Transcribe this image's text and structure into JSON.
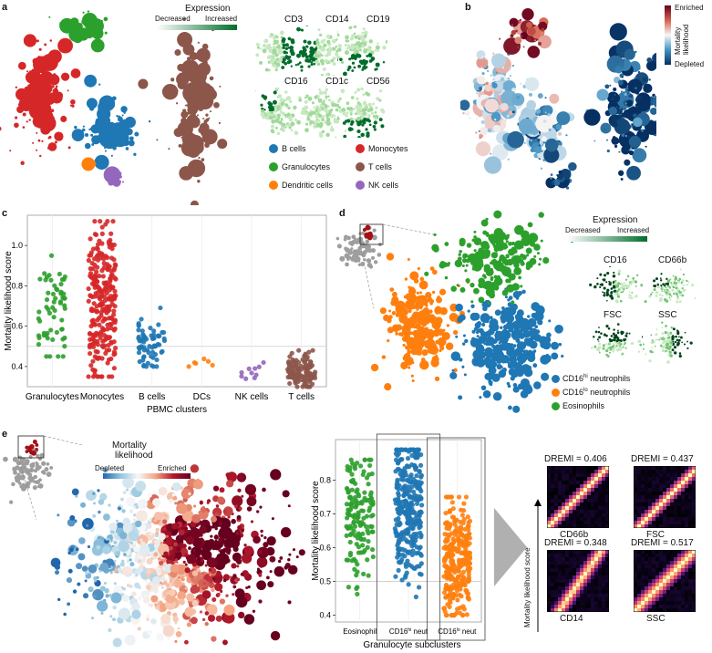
{
  "panels": {
    "a": {
      "letter": "a",
      "expression_title": "Expression",
      "decreased": "Decreased",
      "increased": "Increased",
      "markers": [
        "CD3",
        "CD14",
        "CD19",
        "CD16",
        "CD1c",
        "CD56"
      ],
      "legend": [
        {
          "label": "B cells",
          "color": "#1f77b4"
        },
        {
          "label": "Monocytes",
          "color": "#d62728"
        },
        {
          "label": "Granulocytes",
          "color": "#2ca02c"
        },
        {
          "label": "T cells",
          "color": "#8c564b"
        },
        {
          "label": "Dendritic cells",
          "color": "#ff7f0e"
        },
        {
          "label": "NK cells",
          "color": "#9467bd"
        }
      ]
    },
    "b": {
      "letter": "b",
      "enriched": "Enriched",
      "depleted": "Depleted",
      "scale_title": "Mortality likelihood"
    },
    "c": {
      "letter": "c",
      "ylabel": "Mortality likelihood score",
      "xlabel": "PBMC clusters"
    },
    "d": {
      "letter": "d",
      "expression_title": "Expression",
      "decreased": "Decreased",
      "increased": "Increased",
      "markers": [
        "CD16",
        "CD66b",
        "FSC",
        "SSC"
      ],
      "legend": [
        {
          "label": "CD16hi neutrophils",
          "main": "CD16",
          "sup": "hi",
          "rest": " neutrophils",
          "color": "#1f77b4"
        },
        {
          "label": "CD16lo neutrophils",
          "main": "CD16",
          "sup": "lo",
          "rest": " neutrophils",
          "color": "#ff7f0e"
        },
        {
          "label": "Eosinophils",
          "main": "Eosinophils",
          "sup": "",
          "rest": "",
          "color": "#2ca02c"
        }
      ]
    },
    "e": {
      "letter": "e",
      "scale_title_1": "Mortality",
      "scale_title_2": "likelihood",
      "depleted": "Depleted",
      "enriched": "Enriched",
      "ylabel": "Mortality likelihood score",
      "xlabel": "Granulocyte subclusters",
      "heat_ylabel": "Mortality likelihood score",
      "dremi": [
        {
          "title": "DREMI = 0.406",
          "marker": "CD66b"
        },
        {
          "title": "DREMI = 0.437",
          "marker": "FSC"
        },
        {
          "title": "DREMI = 0.348",
          "marker": "CD14"
        },
        {
          "title": "DREMI = 0.517",
          "marker": "SSC"
        }
      ]
    }
  },
  "chart_data": [
    {
      "type": "scatter",
      "panel": "c",
      "ylabel": "Mortality likelihood score",
      "xlabel": "PBMC clusters",
      "categories": [
        "Granulocytes",
        "Monocytes",
        "B cells",
        "DCs",
        "NK cells",
        "T cells"
      ],
      "colors": [
        "#2ca02c",
        "#d62728",
        "#1f77b4",
        "#ff7f0e",
        "#9467bd",
        "#8c564b"
      ],
      "ranges": [
        [
          0.45,
          0.95
        ],
        [
          0.35,
          1.12
        ],
        [
          0.4,
          0.7
        ],
        [
          0.38,
          0.45
        ],
        [
          0.33,
          0.42
        ],
        [
          0.3,
          0.48
        ]
      ],
      "medians": [
        0.68,
        0.72,
        0.52,
        0.41,
        0.37,
        0.38
      ],
      "counts": [
        60,
        260,
        70,
        6,
        10,
        120
      ],
      "yticks": [
        0.4,
        0.6,
        0.8,
        1.0
      ],
      "ylim": [
        0.3,
        1.15
      ],
      "reference_line": 0.5
    },
    {
      "type": "scatter",
      "panel": "e",
      "ylabel": "Mortality likelihood score",
      "xlabel": "Granulocyte subclusters",
      "categories": [
        "Eosinophil",
        "CD16hi neut",
        "CD16lo neut"
      ],
      "tick_labels": [
        {
          "main": "Eosinophil",
          "sup": "",
          "rest": ""
        },
        {
          "main": "CD16",
          "sup": "hi",
          "rest": " neut"
        },
        {
          "main": "CD16",
          "sup": "lo",
          "rest": " neut"
        }
      ],
      "colors": [
        "#2ca02c",
        "#1f77b4",
        "#ff7f0e"
      ],
      "ranges": [
        [
          0.45,
          0.86
        ],
        [
          0.45,
          0.89
        ],
        [
          0.4,
          0.75
        ]
      ],
      "medians": [
        0.7,
        0.72,
        0.55
      ],
      "counts": [
        150,
        320,
        300
      ],
      "yticks": [
        0.4,
        0.5,
        0.6,
        0.7,
        0.8
      ],
      "ylim": [
        0.38,
        0.92
      ],
      "reference_line": 0.5
    }
  ]
}
